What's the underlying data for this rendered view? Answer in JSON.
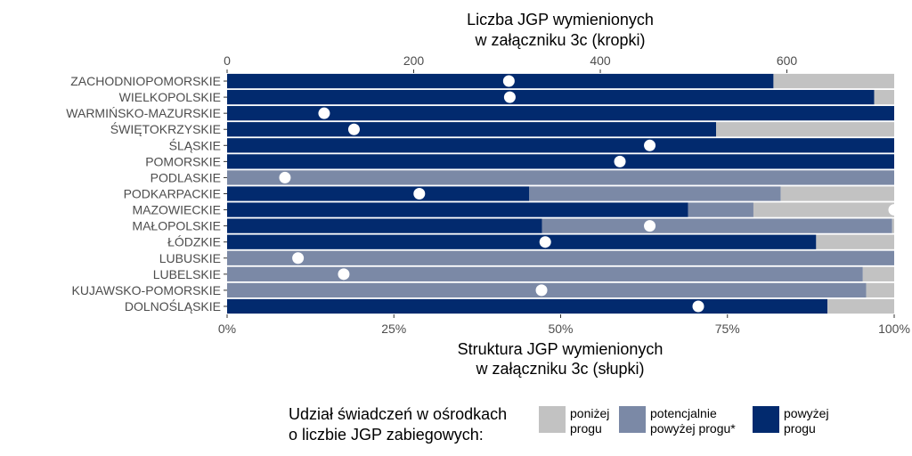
{
  "chart_data": {
    "type": "bar",
    "orientation": "horizontal",
    "stacked": true,
    "top_axis_title": [
      "Liczba JGP wymienionych",
      "w załączniku 3c (kropki)"
    ],
    "bottom_axis_title": [
      "Struktura JGP wymienionych",
      "w załączniku 3c (słupki)"
    ],
    "top_axis": {
      "min": 0,
      "max": 715,
      "ticks": [
        0,
        200,
        400,
        600
      ]
    },
    "bottom_axis": {
      "min": 0,
      "max": 1,
      "ticks": [
        0,
        0.25,
        0.5,
        0.75,
        1
      ],
      "tick_labels": [
        "0%",
        "25%",
        "50%",
        "75%",
        "100%"
      ]
    },
    "categories": [
      "ZACHODNIOPOMORSKIE",
      "WIELKOPOLSKIE",
      "WARMIŃSKO-MAZURSKIE",
      "ŚWIĘTOKRZYSKIE",
      "ŚLĄSKIE",
      "POMORSKIE",
      "PODLASKIE",
      "PODKARPACKIE",
      "MAZOWIECKIE",
      "MAŁOPOLSKIE",
      "ŁÓDZKIE",
      "LUBUSKIE",
      "LUBELSKIE",
      "KUJAWSKO-POMORSKIE",
      "DOLNOŚLĄSKIE"
    ],
    "series": [
      {
        "name": "powyżej progu",
        "color": "#022a6e",
        "values": [
          0.819,
          0.97,
          1.0,
          0.733,
          1.0,
          1.0,
          0.0,
          0.453,
          0.691,
          0.472,
          0.883,
          0.0,
          0.0,
          0.0,
          0.9
        ]
      },
      {
        "name": "potencjalnie powyżej progu*",
        "color": "#7b89a6",
        "values": [
          0.0,
          0.0,
          0.0,
          0.0,
          0.0,
          0.0,
          1.0,
          0.377,
          0.098,
          0.525,
          0.0,
          1.0,
          0.953,
          0.958,
          0.0
        ]
      },
      {
        "name": "poniżej progu",
        "color": "#c2c2c2",
        "values": [
          0.181,
          0.03,
          0.0,
          0.267,
          0.0,
          0.0,
          0.0,
          0.17,
          0.211,
          0.003,
          0.117,
          0.0,
          0.047,
          0.042,
          0.1
        ]
      }
    ],
    "dots": [
      302,
      303,
      104,
      136,
      453,
      421,
      62,
      206,
      715,
      453,
      341,
      76,
      125,
      337,
      505
    ],
    "legend": {
      "title": [
        "Udział świadczeń w ośrodkach",
        "o liczbie JGP zabiegowych:"
      ],
      "position": "bottom",
      "items": [
        {
          "label": [
            "poniżej",
            "progu"
          ],
          "color": "#c2c2c2"
        },
        {
          "label": [
            "potencjalnie",
            "powyżej progu*"
          ],
          "color": "#7b89a6"
        },
        {
          "label": [
            "powyżej",
            "progu"
          ],
          "color": "#022a6e"
        }
      ]
    }
  }
}
